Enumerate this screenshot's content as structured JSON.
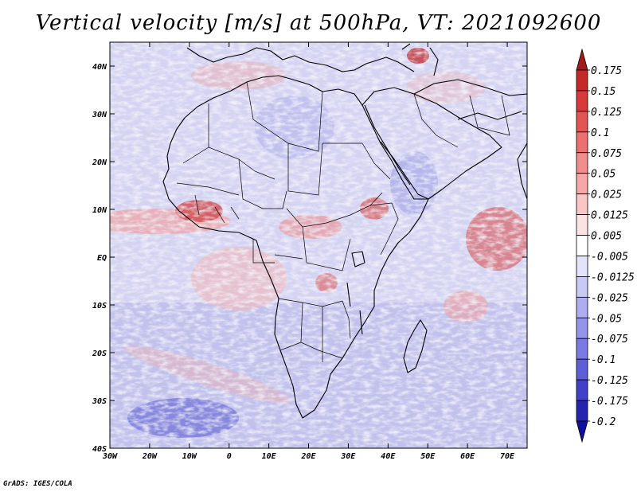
{
  "title": "Vertical velocity [m/s] at 500hPa, VT: 2021092600",
  "footer": "GrADS: IGES/COLA",
  "map": {
    "lon_range": [
      -30,
      75
    ],
    "lat_range": [
      -40,
      45
    ],
    "lon_ticks": [
      "30W",
      "20W",
      "10W",
      "0",
      "10E",
      "20E",
      "30E",
      "40E",
      "50E",
      "60E",
      "70E"
    ],
    "lat_ticks": [
      "40N",
      "30N",
      "20N",
      "10N",
      "EQ",
      "10S",
      "20S",
      "30S",
      "40S"
    ]
  },
  "colorbar": {
    "labels": [
      "0.175",
      "0.15",
      "0.125",
      "0.1",
      "0.075",
      "0.05",
      "0.025",
      "0.0125",
      "0.005",
      "-0.005",
      "-0.0125",
      "-0.025",
      "-0.05",
      "-0.075",
      "-0.1",
      "-0.125",
      "-0.175",
      "-0.2"
    ],
    "colors": [
      "#a01c1c",
      "#c52828",
      "#d83a3a",
      "#e35454",
      "#ec7070",
      "#f28d8d",
      "#f6a8a8",
      "#f9c6c6",
      "#fce3e3",
      "#ffffff",
      "#e3e3fc",
      "#c9c9f6",
      "#adadf0",
      "#9494ea",
      "#7a7ae2",
      "#5e5ed6",
      "#4040c8",
      "#2424b0",
      "#1010a0"
    ]
  }
}
